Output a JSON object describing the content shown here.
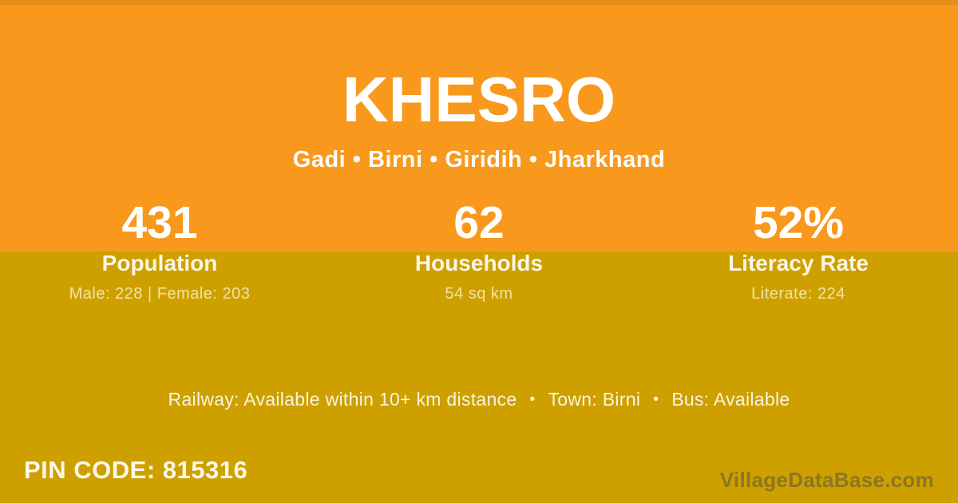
{
  "card": {
    "title": "KHESRO",
    "subtitle": "Gadi • Birni • Giridih • Jharkhand",
    "stats": [
      {
        "value": "431",
        "label": "Population",
        "detail": "Male: 228 | Female: 203"
      },
      {
        "value": "62",
        "label": "Households",
        "detail": "54 sq km"
      },
      {
        "value": "52%",
        "label": "Literacy Rate",
        "detail": "Literate: 224"
      }
    ],
    "info": {
      "railway": "Railway: Available within 10+ km distance",
      "town": "Town: Birni",
      "bus": "Bus: Available",
      "separator": "•"
    },
    "pin_code": "PIN CODE: 815316",
    "watermark": "VillageDataBase.com",
    "colors": {
      "orange_bg": "#F8991D",
      "gold_bg": "#CDA000",
      "title_text": "#FFFFFF",
      "cream_text": "#FAF3DC",
      "pale_detail_text": "#F3E6BD",
      "watermark_text": "#8E8C74"
    }
  }
}
